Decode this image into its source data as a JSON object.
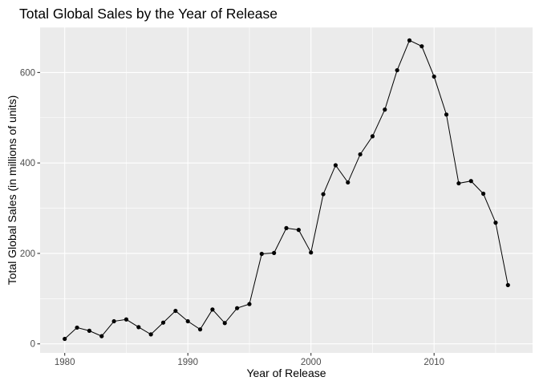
{
  "chart_data": {
    "type": "line",
    "title": "Total Global Sales by the Year of Release",
    "xlabel": "Year of Release",
    "ylabel": "Total Global Sales (in millions of units)",
    "xlim": [
      1978,
      2018
    ],
    "ylim": [
      -20,
      700
    ],
    "x_ticks": [
      1980,
      1990,
      2000,
      2010
    ],
    "x_tick_labels": [
      "1980",
      "1990",
      "2000",
      "2010"
    ],
    "y_ticks": [
      0,
      200,
      400,
      600
    ],
    "y_tick_labels": [
      "0",
      "200",
      "400",
      "600"
    ],
    "grid": true,
    "legend": "none",
    "colors": {
      "panel": "#ebebeb",
      "grid": "#ffffff",
      "line": "#000000",
      "point": "#000000"
    },
    "x": [
      1980,
      1981,
      1982,
      1983,
      1984,
      1985,
      1986,
      1987,
      1988,
      1989,
      1990,
      1991,
      1992,
      1993,
      1994,
      1995,
      1996,
      1997,
      1998,
      1999,
      2000,
      2001,
      2002,
      2003,
      2004,
      2005,
      2006,
      2007,
      2008,
      2009,
      2010,
      2011,
      2012,
      2013,
      2014,
      2015,
      2016
    ],
    "values": [
      11,
      36,
      29,
      17,
      50,
      54,
      37,
      21,
      47,
      73,
      50,
      32,
      76,
      46,
      79,
      88,
      199,
      201,
      256,
      252,
      202,
      331,
      395,
      357,
      419,
      459,
      518,
      605,
      671,
      658,
      591,
      507,
      355,
      360,
      332,
      268,
      130
    ]
  }
}
